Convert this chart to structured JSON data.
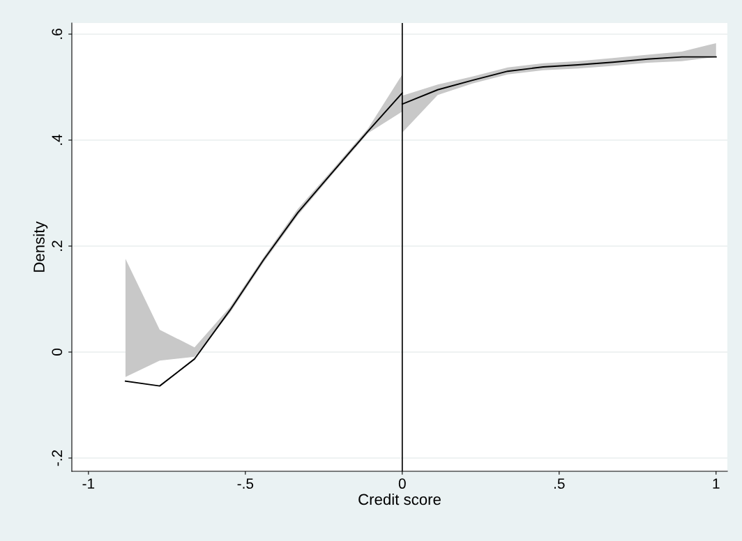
{
  "chart_data": {
    "type": "line",
    "xlabel": "Credit score",
    "ylabel": "Density",
    "series": [
      {
        "color": "#000000",
        "x": [
          -0.882,
          -0.773,
          -0.662,
          -0.549,
          -0.442,
          -0.333,
          -0.22,
          -0.109,
          0
        ],
        "values": [
          -0.055,
          -0.064,
          -0.013,
          0.079,
          0.174,
          0.263,
          0.341,
          0.417,
          0.489
        ],
        "lower": [
          -0.047,
          -0.016,
          -0.009,
          0.074,
          0.169,
          0.258,
          0.337,
          0.413,
          0.454
        ],
        "upper": [
          0.176,
          0.042,
          0.009,
          0.085,
          0.179,
          0.27,
          0.346,
          0.422,
          0.524
        ]
      },
      {
        "color": "#000000",
        "x": [
          0,
          0.113,
          0.224,
          0.336,
          0.449,
          0.56,
          0.671,
          0.782,
          0.891,
          1
        ],
        "values": [
          0.468,
          0.495,
          0.513,
          0.53,
          0.538,
          0.542,
          0.547,
          0.553,
          0.557,
          0.557
        ],
        "lower": [
          0.414,
          0.485,
          0.507,
          0.524,
          0.532,
          0.535,
          0.54,
          0.546,
          0.549,
          0.557
        ],
        "upper": [
          0.484,
          0.505,
          0.52,
          0.537,
          0.545,
          0.549,
          0.555,
          0.561,
          0.567,
          0.583
        ]
      }
    ],
    "xlim": [
      -1.053,
      1.036
    ],
    "ylim": [
      -0.225,
      0.621
    ],
    "xticks": [
      {
        "value": -1,
        "label": "-1"
      },
      {
        "value": -0.5,
        "label": "-.5"
      },
      0,
      {
        "value": 0.5,
        "label": ".5"
      },
      1
    ],
    "yticks": [
      {
        "value": -0.2,
        "label": "-.2"
      },
      0,
      {
        "value": 0.2,
        "label": ".2"
      },
      {
        "value": 0.4,
        "label": ".4"
      },
      {
        "value": 0.6,
        "label": ".6"
      }
    ],
    "ref_lines": [
      {
        "axis": "x",
        "value": 0,
        "color": "#000000"
      }
    ],
    "grid": "y",
    "marker": "none",
    "line_style": "solid"
  }
}
